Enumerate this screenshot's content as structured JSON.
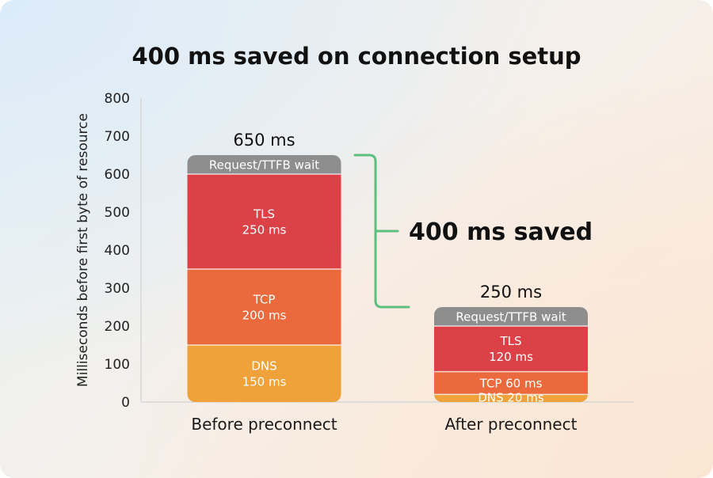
{
  "chart_data": {
    "type": "bar",
    "stacked": true,
    "title": "400 ms saved on connection setup",
    "ylabel": "Milliseconds before first byte of resource",
    "ylim": [
      0,
      800
    ],
    "yticks": [
      0,
      100,
      200,
      300,
      400,
      500,
      600,
      700,
      800
    ],
    "grid": false,
    "categories": [
      "Before preconnect",
      "After preconnect"
    ],
    "totals": [
      "650 ms",
      "250 ms"
    ],
    "series": [
      {
        "name": "DNS",
        "color": "#f0a23a",
        "values": [
          150,
          20
        ],
        "labels": [
          [
            "DNS",
            "150 ms"
          ],
          [
            "DNS 20 ms"
          ]
        ]
      },
      {
        "name": "TCP",
        "color": "#eb6a3d",
        "values": [
          200,
          60
        ],
        "labels": [
          [
            "TCP",
            "200 ms"
          ],
          [
            "TCP 60 ms"
          ]
        ]
      },
      {
        "name": "TLS",
        "color": "#dc4148",
        "values": [
          250,
          120
        ],
        "labels": [
          [
            "TLS",
            "250 ms"
          ],
          [
            "TLS",
            "120 ms"
          ]
        ]
      },
      {
        "name": "Request/TTFB wait",
        "color": "#8e8e8e",
        "values": [
          50,
          50
        ],
        "labels": [
          [
            "Request/TTFB wait"
          ],
          [
            "Request/TTFB wait"
          ]
        ]
      }
    ],
    "annotation": {
      "text": "400 ms saved",
      "color": "#5cbf7e",
      "from": 650,
      "to": 250
    }
  }
}
